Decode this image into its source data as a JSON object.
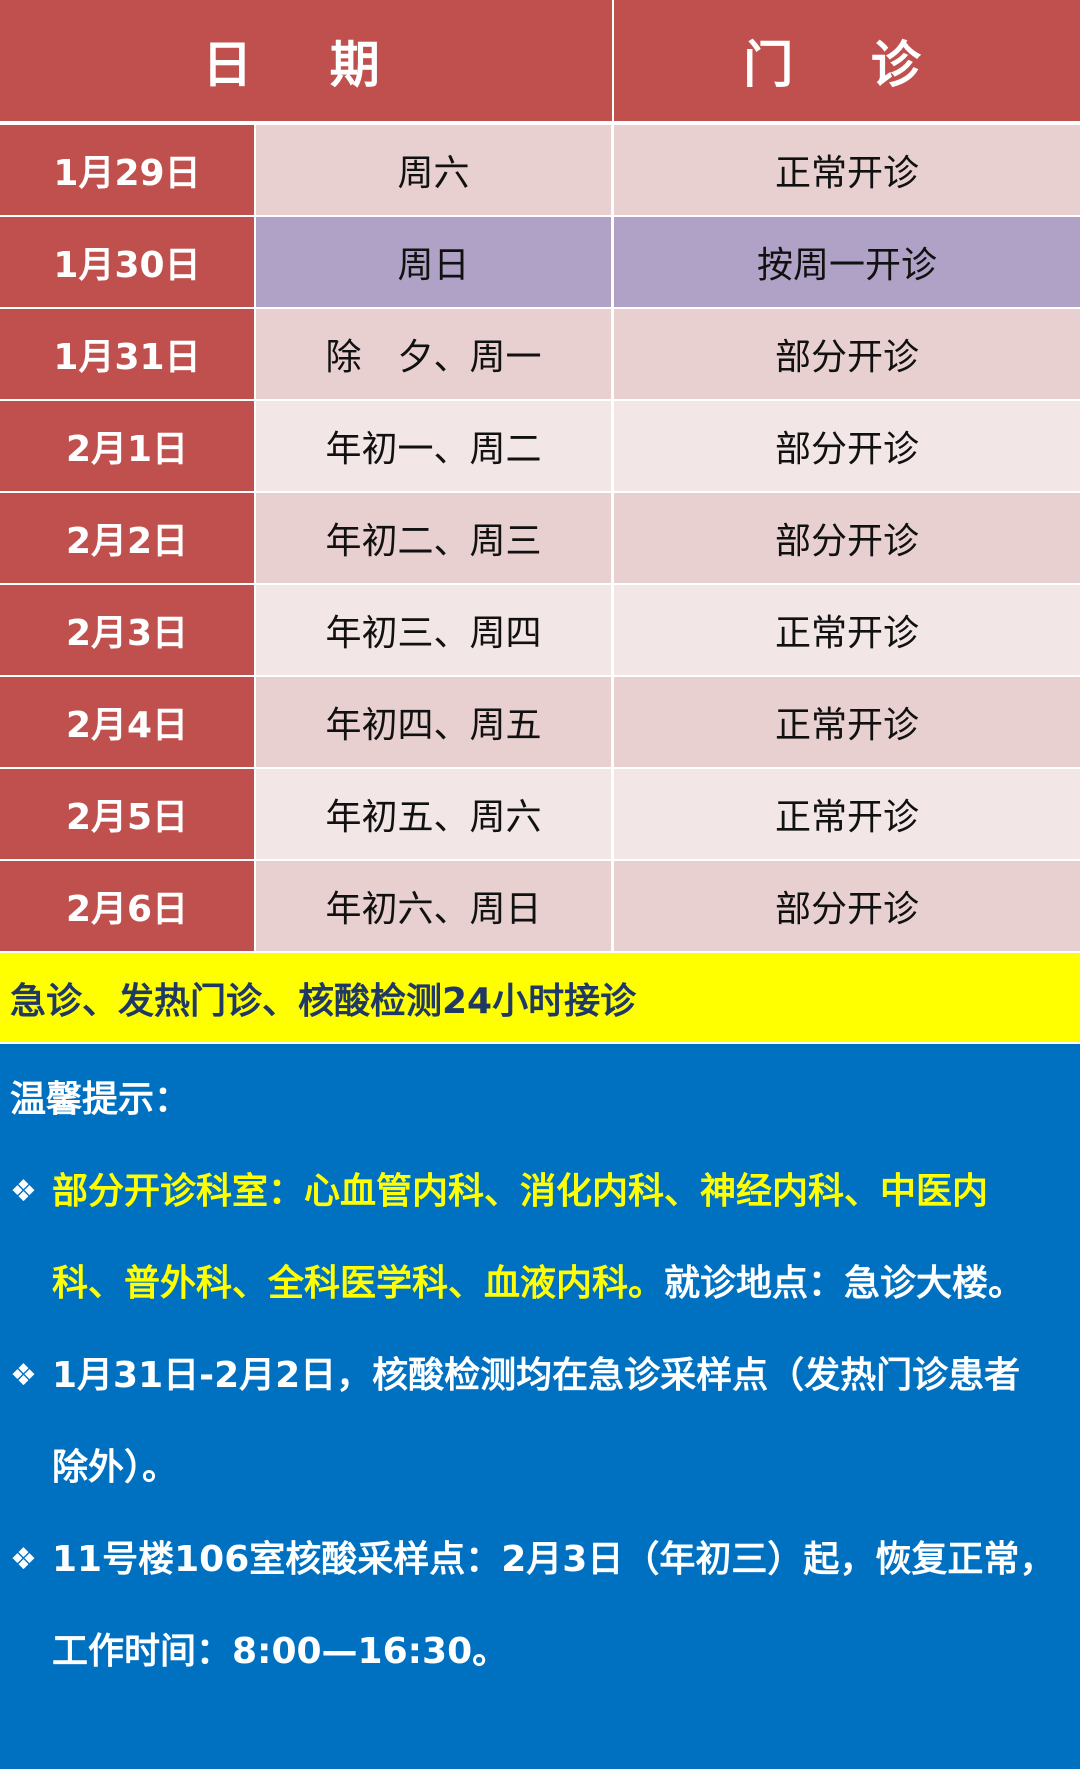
{
  "header": {
    "date": "日 期",
    "clinic": "门 诊"
  },
  "rows": [
    {
      "date": "1月29日",
      "day": "周六",
      "status": "正常开诊"
    },
    {
      "date": "1月30日",
      "day": "周日",
      "status": "按周一开诊"
    },
    {
      "date": "1月31日",
      "day": "除　夕、周一",
      "status": "部分开诊"
    },
    {
      "date": "2月1日",
      "day": "年初一、周二",
      "status": "部分开诊"
    },
    {
      "date": "2月2日",
      "day": "年初二、周三",
      "status": "部分开诊"
    },
    {
      "date": "2月3日",
      "day": "年初三、周四",
      "status": "正常开诊"
    },
    {
      "date": "2月4日",
      "day": "年初四、周五",
      "status": "正常开诊"
    },
    {
      "date": "2月5日",
      "day": "年初五、周六",
      "status": "正常开诊"
    },
    {
      "date": "2月6日",
      "day": "年初六、周日",
      "status": "部分开诊"
    }
  ],
  "banner": "急诊、发热门诊、核酸检测24小时接诊",
  "tips": {
    "title": "温馨提示：",
    "bullet_icon": "diamond-bullet",
    "items": [
      {
        "line1_yellow": "部分开诊科室：心血管内科、消化内科、神经内科、中医内",
        "line2_yellow": "科、普外科、全科医学科、血液内科。",
        "line2_white": "就诊地点：急诊大楼。"
      },
      {
        "line1": "1月31日-2月2日，核酸检测均在急诊采样点（发热门诊患者",
        "line2": "除外）。"
      },
      {
        "line1": "11号楼106室核酸采样点：2月3日（年初三）起，恢复正常，",
        "line2": "工作时间：8:00—16:30。"
      }
    ]
  },
  "colors": {
    "red": "#c0504d",
    "row_dark": "#e8d0d0",
    "row_light": "#f2e6e6",
    "row_highlight": "#b0a2c6",
    "banner": "#ffff00",
    "tips_bg": "#0070c0"
  }
}
